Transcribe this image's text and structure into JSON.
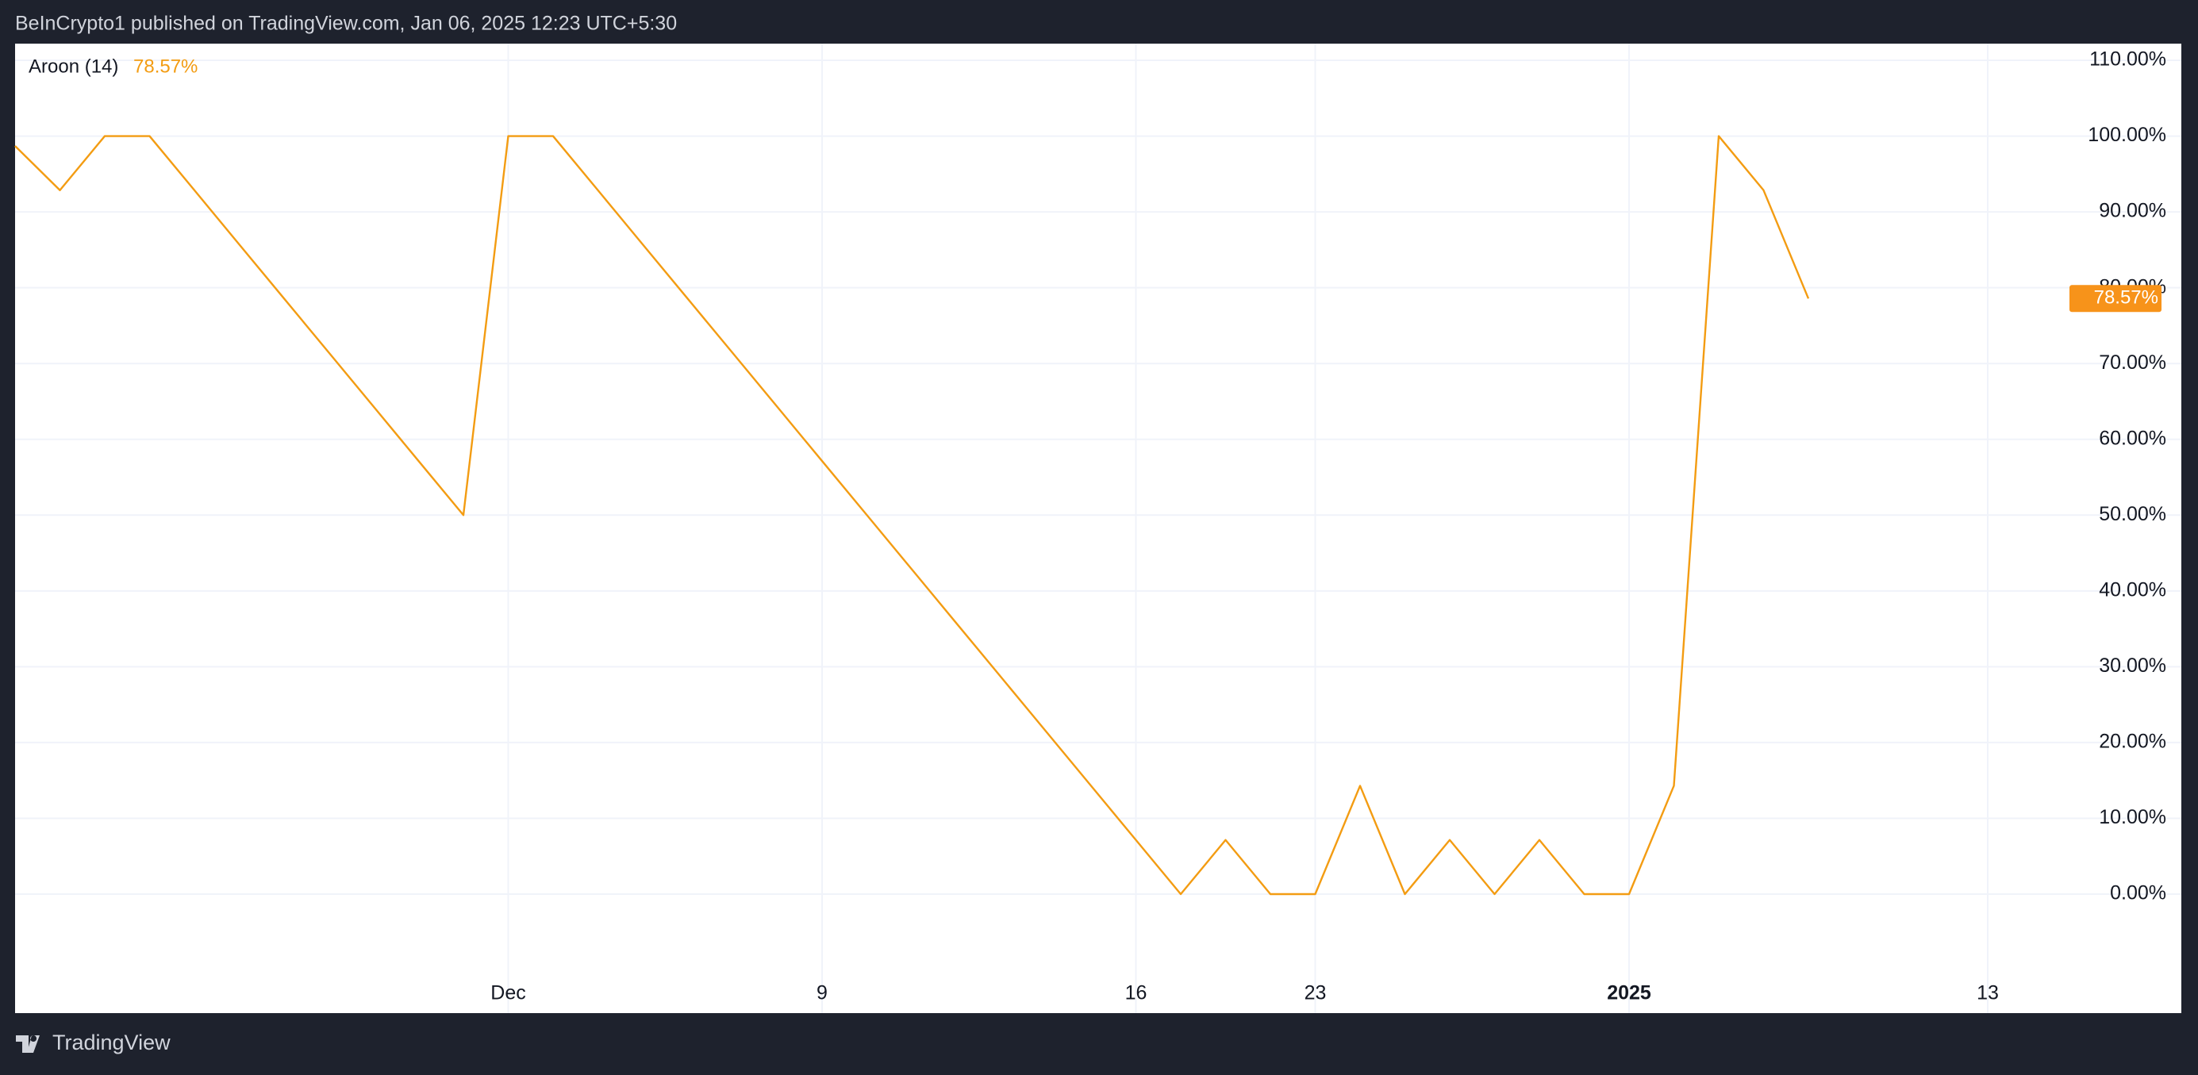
{
  "header": {
    "text": "BeInCrypto1 published on TradingView.com, Jan 06, 2025 12:23 UTC+5:30"
  },
  "footer": {
    "brand": "TradingView"
  },
  "chart_data": {
    "type": "line",
    "categories": [
      null,
      null,
      null,
      null,
      null,
      null,
      null,
      null,
      null,
      null,
      null,
      "Dec",
      null,
      null,
      null,
      null,
      null,
      null,
      "9",
      null,
      null,
      null,
      null,
      null,
      null,
      "16",
      null,
      null,
      null,
      "23",
      null,
      null,
      null,
      null,
      null,
      null,
      "2025",
      null,
      null,
      null,
      null,
      null,
      null,
      null,
      "13",
      null
    ],
    "series": [
      {
        "name": "Aroon (14)",
        "color": "#f39c12",
        "values": [
          98.7,
          92.86,
          100,
          100,
          92.86,
          85.71,
          78.57,
          71.43,
          64.29,
          57.14,
          50,
          100,
          100,
          92.86,
          85.71,
          78.57,
          71.43,
          64.29,
          57.14,
          50,
          42.86,
          35.71,
          28.57,
          21.43,
          14.29,
          7.14,
          0,
          7.14,
          0,
          0,
          14.29,
          0,
          7.14,
          0,
          7.14,
          0,
          0,
          14.29,
          100,
          92.86,
          78.57,
          null,
          null,
          null,
          null,
          null
        ],
        "value_labels": [
          null,
          null,
          null,
          null,
          null,
          null,
          null,
          null,
          null,
          null,
          null,
          null,
          null,
          null,
          null,
          null,
          null,
          null,
          null,
          null,
          null,
          null,
          null,
          null,
          null,
          null,
          null,
          null,
          null,
          null,
          null,
          null,
          null,
          null,
          null,
          null,
          null,
          null,
          null,
          null,
          "78.57%",
          null,
          null,
          null,
          null,
          null
        ]
      }
    ],
    "ylim": [
      -15.7,
      112.2
    ],
    "yticks": [
      {
        "value": 0,
        "label": "0.00%"
      },
      {
        "value": 10,
        "label": "10.00%"
      },
      {
        "value": 20,
        "label": "20.00%"
      },
      {
        "value": 30,
        "label": "30.00%"
      },
      {
        "value": 40,
        "label": "40.00%"
      },
      {
        "value": 50,
        "label": "50.00%"
      },
      {
        "value": 60,
        "label": "60.00%"
      },
      {
        "value": 70,
        "label": "70.00%"
      },
      {
        "value": 80,
        "label": "80.00%"
      },
      {
        "value": 90,
        "label": "90.00%"
      },
      {
        "value": 100,
        "label": "100.00%"
      },
      {
        "value": 110,
        "label": "110.00%"
      }
    ],
    "grid": true
  }
}
